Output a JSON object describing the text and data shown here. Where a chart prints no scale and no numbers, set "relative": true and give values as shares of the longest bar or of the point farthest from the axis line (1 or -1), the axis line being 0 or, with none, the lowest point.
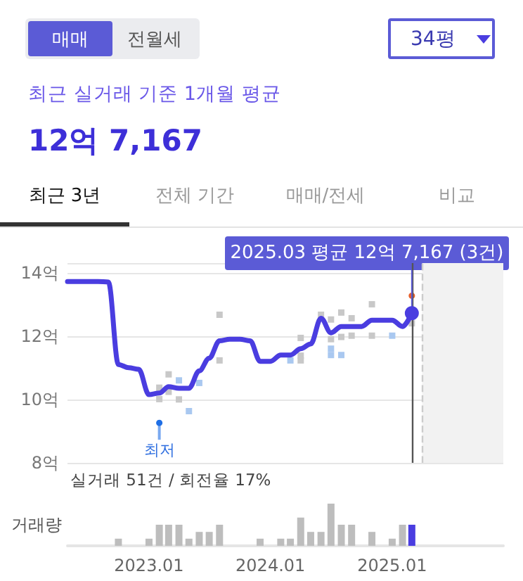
{
  "chart_data": [
    {
      "type": "line",
      "title": "최근 실거래 기준 1개월 평균",
      "subtitle": "12억 7,167",
      "annotations": [
        "매매",
        "전월세",
        "34평",
        "최근 3년",
        "전체 기간",
        "매매/전세",
        "비교",
        "실거래 51건 / 회전율 17%",
        {
          "text": "2025.03 평균 12억 7,167 (3건)",
          "x": "2025-03",
          "y": 12.72
        },
        {
          "text": "최저",
          "x": "2023-02",
          "y": 9.26
        }
      ],
      "series": [
        {
          "type": "line",
          "color": "#4a3de0",
          "marker": "none",
          "x": [
            "2022-05",
            "2022-06",
            "2022-07",
            "2022-08",
            "2022-09",
            "2022-10",
            "2022-11",
            "2022-12",
            "2023-01",
            "2023-02",
            "2023-03",
            "2023-04",
            "2023-05",
            "2023-06",
            "2023-07",
            "2023-08",
            "2023-09",
            "2023-10",
            "2023-11",
            "2023-12",
            "2024-01",
            "2024-02",
            "2024-03",
            "2024-04",
            "2024-05",
            "2024-06",
            "2024-07",
            "2024-08",
            "2024-09",
            "2024-10",
            "2024-11",
            "2024-12",
            "2025-01",
            "2025-02",
            "2025-03"
          ],
          "values": [
            13.72,
            13.72,
            13.72,
            13.72,
            13.7,
            11.1,
            11.0,
            10.95,
            10.15,
            10.2,
            10.4,
            10.35,
            10.35,
            10.9,
            11.3,
            11.85,
            11.9,
            11.9,
            11.85,
            11.2,
            11.2,
            11.4,
            11.4,
            11.6,
            11.75,
            12.56,
            12.1,
            12.3,
            12.3,
            12.3,
            12.5,
            12.5,
            12.5,
            12.3,
            12.72
          ]
        },
        {
          "type": "scatter",
          "color": "#c8c8c8",
          "marker": "square",
          "x": [
            "2023-02",
            "2023-02",
            "2023-03",
            "2023-03",
            "2023-04",
            "2023-08",
            "2023-08",
            "2024-04",
            "2024-04",
            "2024-04",
            "2024-05",
            "2024-06",
            "2024-07",
            "2024-07",
            "2024-08",
            "2024-08",
            "2024-09",
            "2024-09",
            "2024-11",
            "2024-11",
            "2025-03"
          ],
          "values": [
            10.37,
            10.01,
            10.79,
            10.24,
            10.0,
            12.67,
            11.23,
            11.94,
            11.38,
            11.23,
            null,
            12.67,
            12.52,
            11.9,
            12.74,
            11.97,
            12.56,
            12.01,
            13.0,
            12.01,
            12.4
          ]
        },
        {
          "type": "scatter",
          "color": "#a9c8f0",
          "marker": "square",
          "x": [
            "2023-04",
            "2023-05",
            "2023-06",
            "2024-03",
            "2024-07",
            "2024-07",
            "2024-08",
            "2025-01"
          ],
          "values": [
            10.6,
            9.63,
            10.52,
            11.23,
            11.6,
            11.4,
            11.4,
            12.01
          ]
        },
        {
          "type": "scatter",
          "color": "#1f6fe5",
          "marker": "circle",
          "x": [
            "2023-02"
          ],
          "values": [
            9.26
          ]
        },
        {
          "type": "scatter",
          "color": "#e8602c",
          "marker": "circle",
          "x": [
            "2025-03"
          ],
          "values": [
            13.27
          ]
        }
      ],
      "xlim": [
        "2022-05",
        "2025-12"
      ],
      "ylim": [
        8,
        14.3
      ],
      "yticks": [
        {
          "value": 8,
          "label": "8억"
        },
        {
          "value": 10,
          "label": "10억"
        },
        {
          "value": 12,
          "label": "12억"
        },
        {
          "value": 14,
          "label": "14억"
        }
      ],
      "grid": "y",
      "tick_labels": "y",
      "ref_lines": [
        {
          "axis": "x",
          "value": "2025-03",
          "color": "#555555"
        },
        {
          "axis": "x",
          "value": "2025-04",
          "color": "#cccccc",
          "line_style": "dashed"
        }
      ],
      "bands": [
        {
          "axis": "x",
          "from": "2025-04",
          "to": "2025-12",
          "color": "#f2f2f2"
        }
      ]
    },
    {
      "type": "bar",
      "ylabel": "거래량",
      "relative": true,
      "x": [
        "2022-10",
        "2023-01",
        "2023-02",
        "2023-03",
        "2023-04",
        "2023-05",
        "2023-06",
        "2023-07",
        "2023-08",
        "2023-12",
        "2024-02",
        "2024-03",
        "2024-04",
        "2024-05",
        "2024-06",
        "2024-07",
        "2024-08",
        "2024-09",
        "2024-11",
        "2025-01",
        "2025-02",
        "2025-03"
      ],
      "values": [
        0.17,
        0.17,
        0.5,
        0.5,
        0.5,
        0.17,
        0.33,
        0.33,
        0.5,
        0.17,
        0.17,
        0.17,
        0.67,
        0.33,
        0.33,
        1,
        0.5,
        0.5,
        0.33,
        0.17,
        0.5,
        0.5
      ],
      "colors": [
        "#bdbdbd",
        "#bdbdbd",
        "#bdbdbd",
        "#bdbdbd",
        "#bdbdbd",
        "#bdbdbd",
        "#bdbdbd",
        "#bdbdbd",
        "#bdbdbd",
        "#bdbdbd",
        "#bdbdbd",
        "#bdbdbd",
        "#bdbdbd",
        "#bdbdbd",
        "#bdbdbd",
        "#bdbdbd",
        "#bdbdbd",
        "#bdbdbd",
        "#bdbdbd",
        "#bdbdbd",
        "#bdbdbd",
        "#4a3de0"
      ],
      "xlim": [
        "2022-05",
        "2025-12"
      ],
      "xticks": [
        {
          "value": "2023-01",
          "label": "2023.01"
        },
        {
          "value": "2024-01",
          "label": "2024.01"
        },
        {
          "value": "2025-01",
          "label": "2025.01"
        }
      ],
      "tick_labels": "x"
    }
  ]
}
